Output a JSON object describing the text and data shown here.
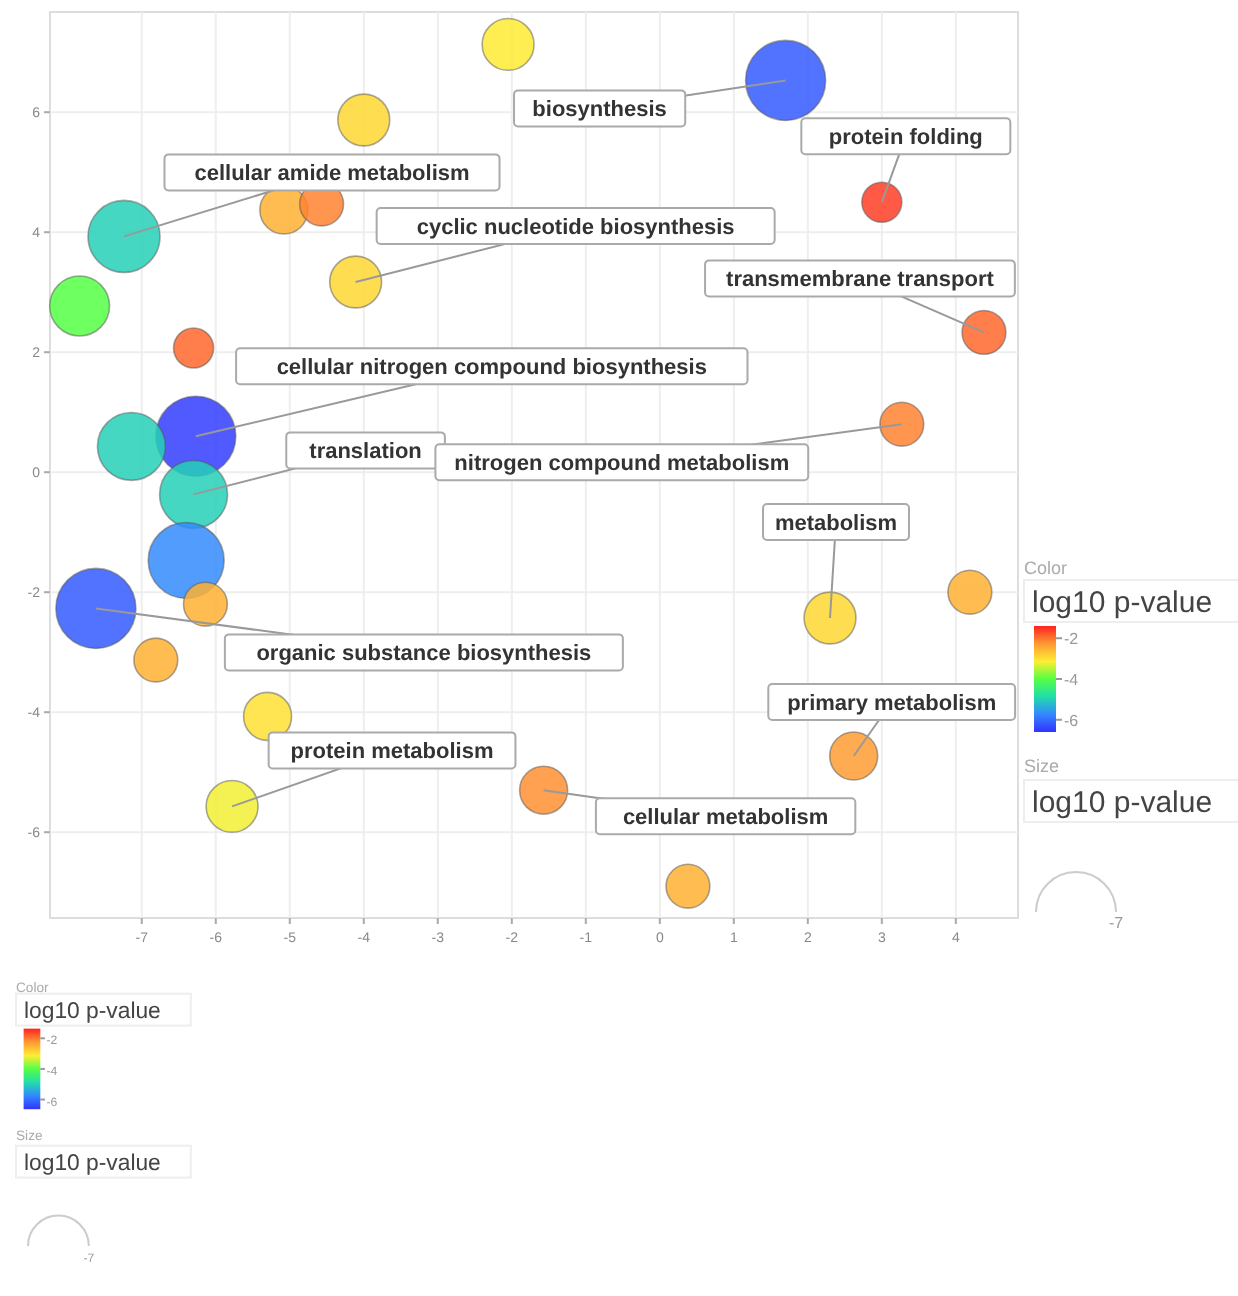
{
  "chart_data": [
    {
      "type": "bubble",
      "x": [
        -2.05,
        1.7,
        -4.0,
        -5.08,
        -4.57,
        -7.24,
        -7.84,
        -4.11,
        3.0,
        4.38,
        -6.3,
        -6.27,
        -7.14,
        -6.3,
        3.27,
        -6.4,
        -6.14,
        -7.62,
        -6.81,
        2.3,
        4.19,
        -5.3,
        2.62,
        -5.78,
        -1.57,
        0.38
      ],
      "values": [
        7.13,
        6.53,
        5.87,
        4.37,
        4.47,
        3.93,
        2.77,
        3.17,
        4.5,
        2.33,
        2.07,
        0.6,
        0.43,
        -0.37,
        0.8,
        -1.47,
        -2.2,
        -2.27,
        -3.13,
        -2.43,
        -2.0,
        -4.07,
        -4.73,
        -5.57,
        -5.3,
        -6.9
      ],
      "cvalues": [
        -3.1,
        -6.2,
        -2.9,
        -2.5,
        -2.1,
        -5.0,
        -4.0,
        -2.9,
        -1.6,
        -1.9,
        -1.9,
        -6.5,
        -5.0,
        -5.0,
        -2.1,
        -5.7,
        -2.5,
        -6.2,
        -2.5,
        -2.9,
        -2.5,
        -3.0,
        -2.3,
        -3.2,
        -2.2,
        -2.5
      ],
      "sizes": [
        0.42,
        1,
        0.42,
        0.36,
        0.3,
        0.81,
        0.56,
        0.42,
        0.25,
        0.3,
        0.25,
        1,
        0.72,
        0.72,
        0.3,
        0.9,
        0.3,
        1,
        0.3,
        0.42,
        0.3,
        0.36,
        0.36,
        0.42,
        0.36,
        0.3
      ],
      "xlim": [
        -8.24,
        4.84
      ],
      "ylim": [
        -7.43,
        7.67
      ],
      "xticks": [
        -7,
        -6,
        -5,
        -4,
        -3,
        -2,
        -1,
        0,
        1,
        2,
        3,
        4
      ],
      "yticks": [
        -6,
        -4,
        -2,
        0,
        2,
        4,
        6
      ],
      "clim": [
        -6.6,
        -1.4
      ],
      "cticks": [
        -2,
        -4,
        -6
      ],
      "clabel": "log10 p-value",
      "grid": true,
      "annotations": [
        {
          "text": "biosynthesis",
          "x": 1.7,
          "y": 6.53
        },
        {
          "text": "protein folding",
          "x": 3.0,
          "y": 4.5
        },
        {
          "text": "cellular amide metabolism",
          "x": -7.24,
          "y": 3.93
        },
        {
          "text": "cyclic nucleotide biosynthesis",
          "x": -4.11,
          "y": 3.17
        },
        {
          "text": "transmembrane transport",
          "x": 4.38,
          "y": 2.33
        },
        {
          "text": "cellular nitrogen compound biosynthesis",
          "x": -6.27,
          "y": 0.6
        },
        {
          "text": "translation",
          "x": -6.3,
          "y": -0.37
        },
        {
          "text": "nitrogen compound metabolism",
          "x": 3.27,
          "y": 0.8
        },
        {
          "text": "metabolism",
          "x": 2.3,
          "y": -2.43
        },
        {
          "text": "organic substance biosynthesis",
          "x": -7.62,
          "y": -2.27
        },
        {
          "text": "primary metabolism",
          "x": 2.62,
          "y": -4.73
        },
        {
          "text": "protein metabolism",
          "x": -5.78,
          "y": -5.57
        },
        {
          "text": "cellular metabolism",
          "x": -1.57,
          "y": -5.3
        },
        "Color",
        "Size",
        "-7"
      ]
    },
    {
      "type": "other",
      "clabel": "log10 p-value",
      "annotations": [
        "Color",
        "Size",
        "-7",
        "-2",
        "-4",
        "-6"
      ]
    }
  ]
}
